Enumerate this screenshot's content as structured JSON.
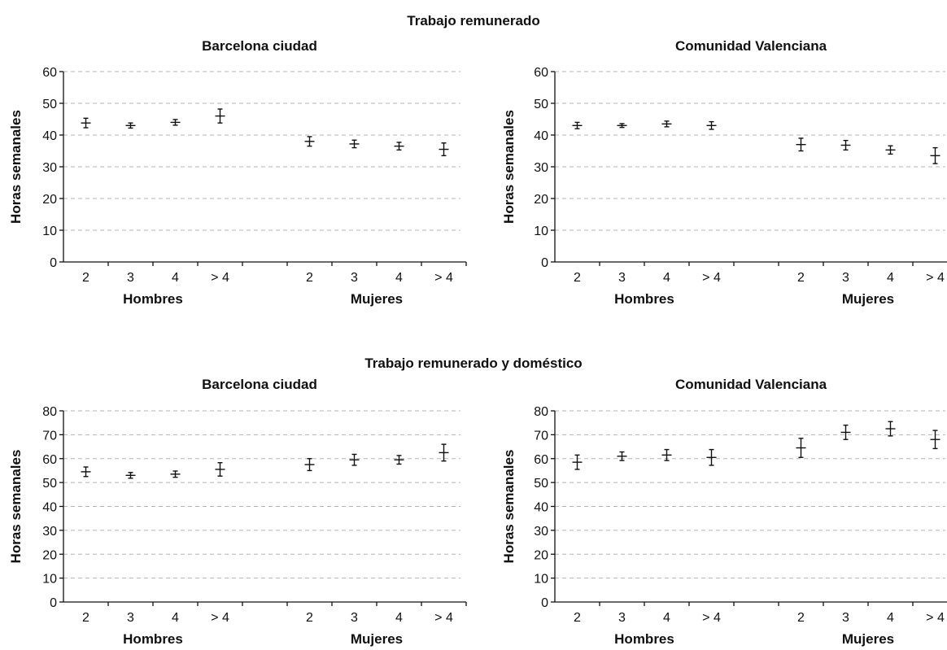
{
  "titles": {
    "top": "Trabajo remunerado",
    "bottom": "Trabajo remunerado y doméstico"
  },
  "chart_data": [
    {
      "type": "scatter",
      "title": "Barcelona ciudad",
      "section": "Trabajo remunerado",
      "ylabel": "Horas semanales",
      "ylim": [
        0,
        60
      ],
      "yticks": [
        0,
        10,
        20,
        30,
        40,
        50,
        60
      ],
      "grid": true,
      "groups": [
        "Hombres",
        "Mujeres"
      ],
      "categories": [
        "2",
        "3",
        "4",
        "> 4"
      ],
      "series": [
        {
          "name": "Hombres",
          "values": [
            43.8,
            43.0,
            44.0,
            46.0
          ],
          "error": [
            1.5,
            0.8,
            0.9,
            2.2
          ]
        },
        {
          "name": "Mujeres",
          "values": [
            38.0,
            37.2,
            36.5,
            35.5
          ],
          "error": [
            1.5,
            1.2,
            1.2,
            2.0
          ]
        }
      ]
    },
    {
      "type": "scatter",
      "title": "Comunidad Valenciana",
      "section": "Trabajo remunerado",
      "ylabel": "Horas semanales",
      "ylim": [
        0,
        60
      ],
      "yticks": [
        0,
        10,
        20,
        30,
        40,
        50,
        60
      ],
      "grid": true,
      "groups": [
        "Hombres",
        "Mujeres"
      ],
      "categories": [
        "2",
        "3",
        "4",
        "> 4"
      ],
      "series": [
        {
          "name": "Hombres",
          "values": [
            43.0,
            43.0,
            43.5,
            43.0
          ],
          "error": [
            1.0,
            0.6,
            0.9,
            1.2
          ]
        },
        {
          "name": "Mujeres",
          "values": [
            37.0,
            36.8,
            35.3,
            33.5
          ],
          "error": [
            2.0,
            1.5,
            1.3,
            2.5
          ]
        }
      ]
    },
    {
      "type": "scatter",
      "title": "Barcelona ciudad",
      "section": "Trabajo remunerado y doméstico",
      "ylabel": "Horas semanales",
      "ylim": [
        0,
        80
      ],
      "yticks": [
        0,
        10,
        20,
        30,
        40,
        50,
        60,
        70,
        80
      ],
      "grid": true,
      "groups": [
        "Hombres",
        "Mujeres"
      ],
      "categories": [
        "2",
        "3",
        "4",
        "> 4"
      ],
      "series": [
        {
          "name": "Hombres",
          "values": [
            54.5,
            53.0,
            53.5,
            55.5
          ],
          "error": [
            2.0,
            1.2,
            1.3,
            2.8
          ]
        },
        {
          "name": "Mujeres",
          "values": [
            57.5,
            59.5,
            59.5,
            62.5
          ],
          "error": [
            2.5,
            2.3,
            1.8,
            3.5
          ]
        }
      ]
    },
    {
      "type": "scatter",
      "title": "Comunidad Valenciana",
      "section": "Trabajo remunerado y doméstico",
      "ylabel": "Horas semanales",
      "ylim": [
        0,
        80
      ],
      "yticks": [
        0,
        10,
        20,
        30,
        40,
        50,
        60,
        70,
        80
      ],
      "grid": true,
      "groups": [
        "Hombres",
        "Mujeres"
      ],
      "categories": [
        "2",
        "3",
        "4",
        "> 4"
      ],
      "series": [
        {
          "name": "Hombres",
          "values": [
            58.5,
            61.0,
            61.5,
            60.5
          ],
          "error": [
            3.0,
            1.8,
            2.3,
            3.3
          ]
        },
        {
          "name": "Mujeres",
          "values": [
            64.5,
            71.0,
            72.5,
            68.0
          ],
          "error": [
            4.0,
            3.0,
            3.0,
            3.8
          ]
        }
      ]
    }
  ]
}
